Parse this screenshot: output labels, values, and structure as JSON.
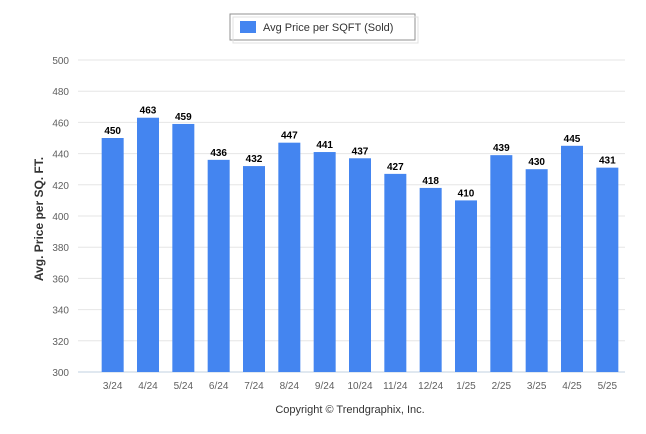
{
  "chart_data": {
    "type": "bar",
    "categories": [
      "3/24",
      "4/24",
      "5/24",
      "6/24",
      "7/24",
      "8/24",
      "9/24",
      "10/24",
      "11/24",
      "12/24",
      "1/25",
      "2/25",
      "3/25",
      "4/25",
      "5/25"
    ],
    "series": [
      {
        "name": "Avg Price per SQFT (Sold)",
        "values": [
          450,
          463,
          459,
          436,
          432,
          447,
          441,
          437,
          427,
          418,
          410,
          439,
          430,
          445,
          431
        ],
        "color": "#4485f0"
      }
    ],
    "ylabel": "Avg. Price per SQ. FT.",
    "xlabel": "",
    "ylim": [
      300,
      500
    ],
    "yticks": [
      300,
      320,
      340,
      360,
      380,
      400,
      420,
      440,
      460,
      480,
      500
    ],
    "grid": true,
    "data_labels": true,
    "legend_position": "top-center"
  },
  "footer": {
    "copyright": "Copyright © Trendgraphix, Inc."
  },
  "colors": {
    "bar": "#4485f0",
    "grid": "#e6e6e6",
    "axis": "#c0d0e0"
  }
}
